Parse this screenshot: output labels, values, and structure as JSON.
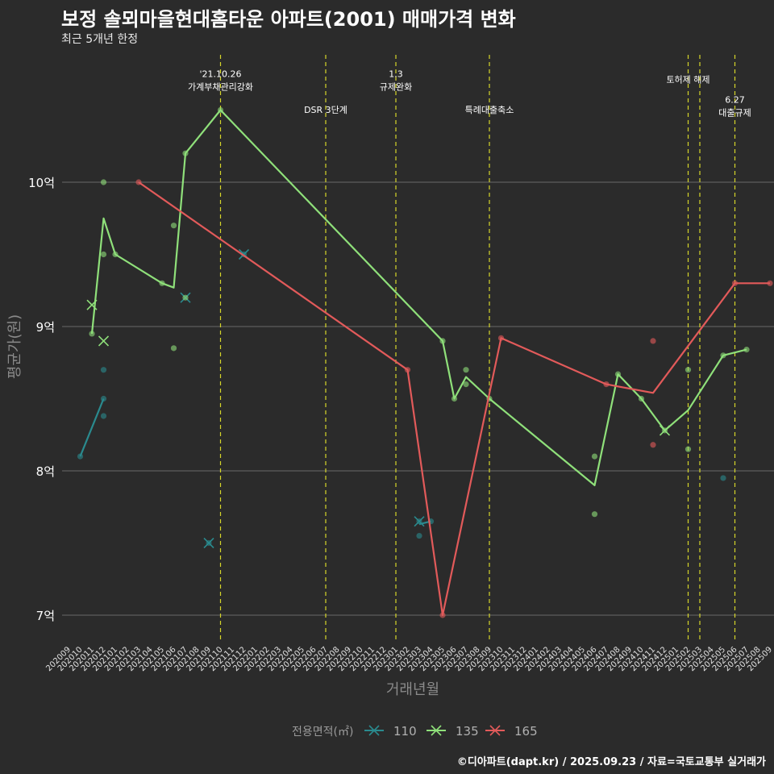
{
  "title": "보정 솔뫼마을현대홈타운 아파트(2001) 매매가격 변화",
  "subtitle": "최근 5개년 한정",
  "caption": "©디아파트(dapt.kr) / 2025.09.23 / 자료=국토교통부 실거래가",
  "chart_data": {
    "type": "line",
    "xlabel": "거래년월",
    "ylabel": "평균가(원)",
    "ylim": [
      6.85,
      10.85
    ],
    "yticks": [
      7,
      8,
      9,
      10
    ],
    "ytick_labels": [
      "7억",
      "8억",
      "9억",
      "10억"
    ],
    "categories": [
      "202009",
      "202010",
      "202011",
      "202012",
      "202101",
      "202102",
      "202103",
      "202104",
      "202105",
      "202106",
      "202107",
      "202108",
      "202109",
      "202110",
      "202111",
      "202112",
      "202201",
      "202202",
      "202203",
      "202204",
      "202205",
      "202206",
      "202207",
      "202208",
      "202209",
      "202210",
      "202211",
      "202212",
      "202301",
      "202302",
      "202303",
      "202304",
      "202305",
      "202306",
      "202307",
      "202308",
      "202309",
      "202310",
      "202311",
      "202312",
      "202401",
      "202402",
      "202403",
      "202404",
      "202405",
      "202406",
      "202407",
      "202408",
      "202409",
      "202410",
      "202411",
      "202412",
      "202501",
      "202502",
      "202503",
      "202504",
      "202505",
      "202506",
      "202507",
      "202508",
      "202509"
    ],
    "legend_title": "전용면적(㎡)",
    "series": [
      {
        "name": "110",
        "color": "#2a8a8e",
        "line": [
          [
            "202010",
            8.1
          ],
          [
            "202012",
            8.5
          ]
        ],
        "line2": [
          [
            "202303",
            7.63
          ],
          [
            "202304",
            7.65
          ]
        ],
        "points": [
          [
            "202010",
            8.1
          ],
          [
            "202012",
            8.7
          ],
          [
            "202012",
            8.5
          ],
          [
            "202012",
            8.38
          ],
          [
            "202109",
            7.5
          ],
          [
            "202112",
            9.5
          ],
          [
            "202303",
            7.65
          ],
          [
            "202303",
            7.55
          ],
          [
            "202304",
            7.65
          ],
          [
            "202505",
            7.95
          ]
        ],
        "crosses": [
          [
            "202109",
            7.5
          ],
          [
            "202107",
            9.2
          ],
          [
            "202112",
            9.5
          ],
          [
            "202303",
            7.65
          ]
        ]
      },
      {
        "name": "135",
        "color": "#8fe07a",
        "line": [
          [
            "202011",
            8.95
          ],
          [
            "202012",
            9.75
          ],
          [
            "202101",
            9.5
          ],
          [
            "202105",
            9.3
          ],
          [
            "202106",
            9.27
          ],
          [
            "202107",
            10.2
          ],
          [
            "202110",
            10.5
          ],
          [
            "202305",
            8.9
          ],
          [
            "202306",
            8.5
          ],
          [
            "202307",
            8.65
          ],
          [
            "202309",
            8.5
          ],
          [
            "202406",
            7.9
          ],
          [
            "202408",
            8.67
          ],
          [
            "202410",
            8.5
          ],
          [
            "202412",
            8.28
          ],
          [
            "202502",
            8.42
          ],
          [
            "202505",
            8.8
          ],
          [
            "202507",
            8.84
          ]
        ],
        "points": [
          [
            "202011",
            8.95
          ],
          [
            "202012",
            10.0
          ],
          [
            "202012",
            9.5
          ],
          [
            "202101",
            9.5
          ],
          [
            "202105",
            9.3
          ],
          [
            "202106",
            9.7
          ],
          [
            "202106",
            8.85
          ],
          [
            "202107",
            10.2
          ],
          [
            "202107",
            9.2
          ],
          [
            "202110",
            10.5
          ],
          [
            "202305",
            8.9
          ],
          [
            "202306",
            8.5
          ],
          [
            "202307",
            8.7
          ],
          [
            "202307",
            8.6
          ],
          [
            "202309",
            8.5
          ],
          [
            "202406",
            8.1
          ],
          [
            "202406",
            7.7
          ],
          [
            "202408",
            8.67
          ],
          [
            "202410",
            8.5
          ],
          [
            "202412",
            8.28
          ],
          [
            "202502",
            8.7
          ],
          [
            "202502",
            8.15
          ],
          [
            "202505",
            8.8
          ],
          [
            "202507",
            8.84
          ]
        ],
        "crosses": [
          [
            "202011",
            9.15
          ],
          [
            "202012",
            8.9
          ],
          [
            "202412",
            8.28
          ]
        ]
      },
      {
        "name": "165",
        "color": "#e25a5a",
        "line": [
          [
            "202103",
            10.0
          ],
          [
            "202302",
            8.7
          ],
          [
            "202305",
            7.0
          ],
          [
            "202310",
            8.92
          ],
          [
            "202407",
            8.6
          ],
          [
            "202411",
            8.54
          ],
          [
            "202506",
            9.3
          ],
          [
            "202509",
            9.3
          ]
        ],
        "points": [
          [
            "202103",
            10.0
          ],
          [
            "202302",
            8.7
          ],
          [
            "202305",
            7.0
          ],
          [
            "202310",
            8.92
          ],
          [
            "202407",
            8.6
          ],
          [
            "202411",
            8.9
          ],
          [
            "202411",
            8.18
          ],
          [
            "202506",
            9.3
          ],
          [
            "202509",
            9.3
          ]
        ],
        "crosses": []
      }
    ],
    "vlines": [
      {
        "x": "202110",
        "label": "'21.10.26\n가계부채관리강화",
        "label_y": 10.73
      },
      {
        "x": "202207",
        "label": "DSR 3단계",
        "label_y": 10.48
      },
      {
        "x": "202301",
        "label": "1.3\n규제완화",
        "label_y": 10.73
      },
      {
        "x": "202309",
        "label": "특례대출축소",
        "label_y": 10.48
      },
      {
        "x": "202502",
        "label": "토허제 해제",
        "label_y": 10.69
      },
      {
        "x": "202503",
        "label": "",
        "label_y": 10.69
      },
      {
        "x": "202506",
        "label": "6.27\n대출규제",
        "label_y": 10.55
      }
    ]
  }
}
